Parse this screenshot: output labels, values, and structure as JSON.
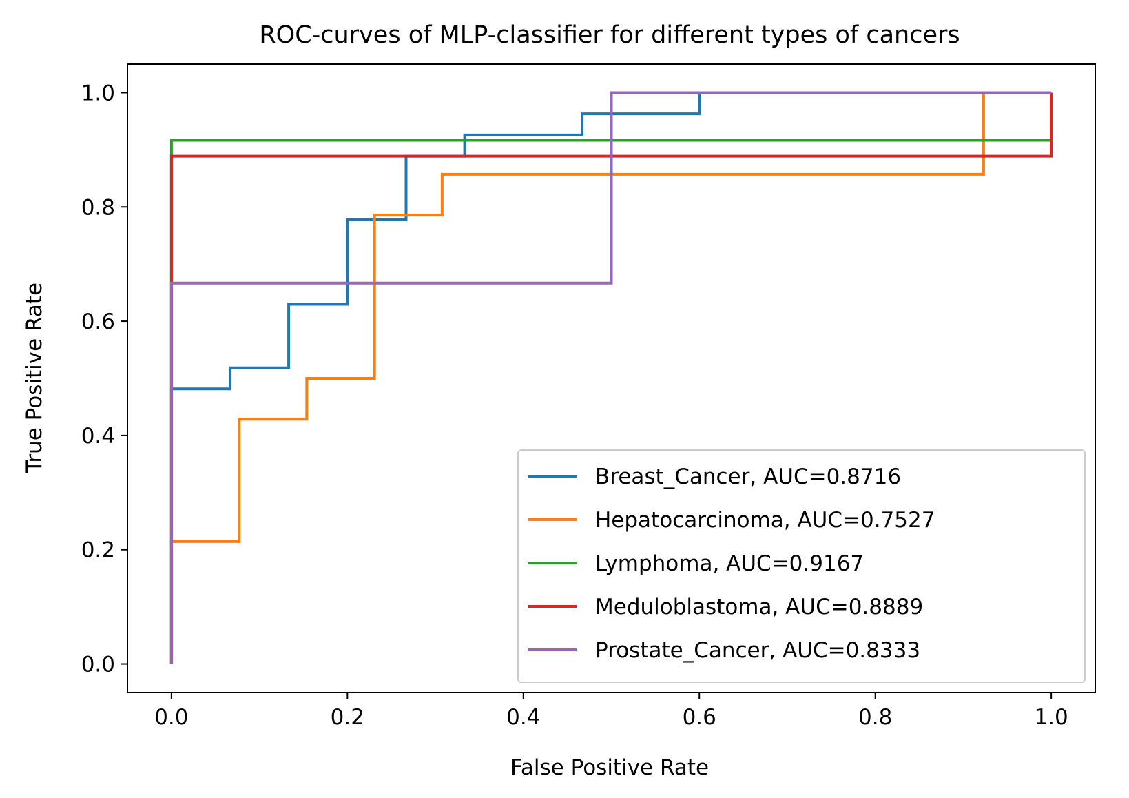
{
  "chart_data": {
    "type": "line",
    "title": "ROC-curves of MLP-classifier for different types of cancers",
    "xlabel": "False Positive Rate",
    "ylabel": "True Positive Rate",
    "xlim": [
      -0.05,
      1.05
    ],
    "ylim": [
      -0.05,
      1.05
    ],
    "xticks": [
      0.0,
      0.2,
      0.4,
      0.6,
      0.8,
      1.0
    ],
    "xtick_labels": [
      "0.0",
      "0.2",
      "0.4",
      "0.6",
      "0.8",
      "1.0"
    ],
    "yticks": [
      0.0,
      0.2,
      0.4,
      0.6,
      0.8,
      1.0
    ],
    "ytick_labels": [
      "0.0",
      "0.2",
      "0.4",
      "0.6",
      "0.8",
      "1.0"
    ],
    "grid": false,
    "legend_position": "lower right",
    "series": [
      {
        "name": "Breast_Cancer, AUC=0.8716",
        "color": "#1f77b4",
        "x": [
          0,
          0,
          0.0667,
          0.0667,
          0.1333,
          0.1333,
          0.2,
          0.2,
          0.2667,
          0.2667,
          0.3333,
          0.3333,
          0.4667,
          0.4667,
          0.6,
          0.6,
          1.0
        ],
        "y": [
          0,
          0.4815,
          0.4815,
          0.5185,
          0.5185,
          0.6296,
          0.6296,
          0.7778,
          0.7778,
          0.8889,
          0.8889,
          0.9259,
          0.9259,
          0.963,
          0.963,
          1.0,
          1.0
        ]
      },
      {
        "name": "Hepatocarcinoma, AUC=0.7527",
        "color": "#ff7f0e",
        "x": [
          0,
          0,
          0.0769,
          0.0769,
          0.1538,
          0.1538,
          0.2308,
          0.2308,
          0.3077,
          0.3077,
          0.9231,
          0.9231,
          1.0
        ],
        "y": [
          0,
          0.2143,
          0.2143,
          0.4286,
          0.4286,
          0.5,
          0.5,
          0.7857,
          0.7857,
          0.8571,
          0.8571,
          1.0,
          1.0
        ]
      },
      {
        "name": "Lymphoma, AUC=0.9167",
        "color": "#2ca02c",
        "x": [
          0,
          0,
          1.0,
          1.0
        ],
        "y": [
          0,
          0.9167,
          0.9167,
          1.0
        ]
      },
      {
        "name": "Meduloblastoma, AUC=0.8889",
        "color": "#d62728",
        "x": [
          0,
          0,
          1.0,
          1.0
        ],
        "y": [
          0,
          0.8889,
          0.8889,
          1.0
        ]
      },
      {
        "name": "Prostate_Cancer, AUC=0.8333",
        "color": "#9467bd",
        "x": [
          0,
          0,
          0.5,
          0.5,
          1.0
        ],
        "y": [
          0,
          0.6667,
          0.6667,
          1.0,
          1.0
        ]
      }
    ]
  }
}
